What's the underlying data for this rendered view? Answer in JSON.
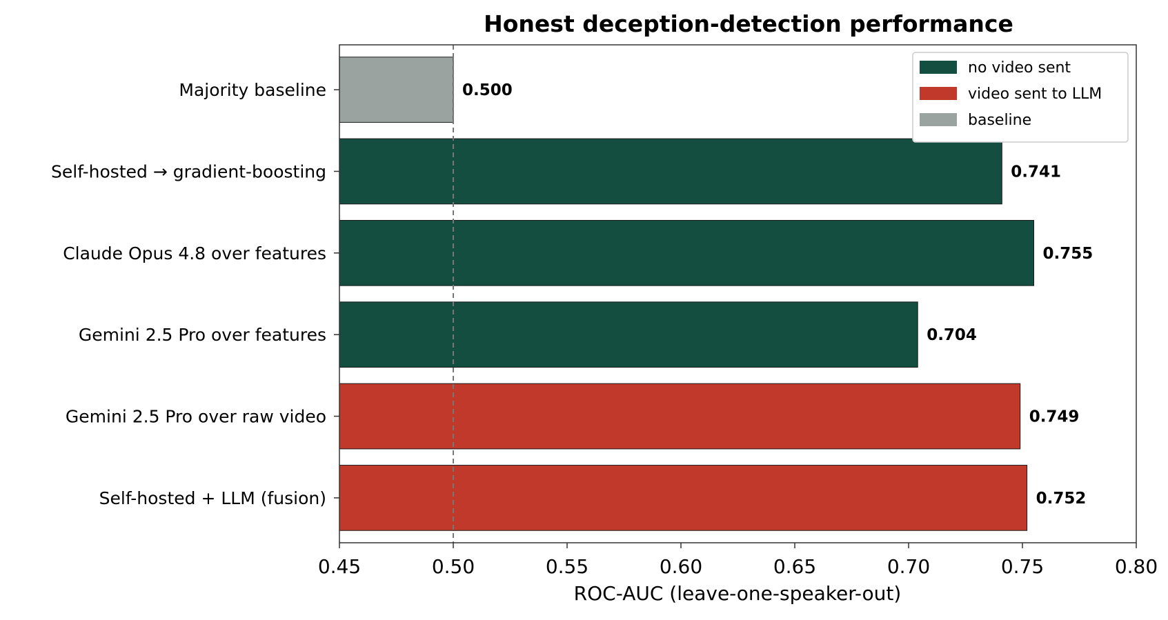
{
  "chart_data": {
    "type": "bar",
    "orientation": "horizontal",
    "title": "Honest deception-detection performance",
    "xlabel": "ROC-AUC (leave-one-speaker-out)",
    "ylabel": "",
    "xlim": [
      0.45,
      0.8
    ],
    "xticks": [
      "0.45",
      "0.50",
      "0.55",
      "0.60",
      "0.65",
      "0.70",
      "0.75",
      "0.80"
    ],
    "reference_line": 0.5,
    "grid": false,
    "legend_position": "top-right",
    "categories": [
      "Majority baseline",
      "Self-hosted → gradient-boosting",
      "Claude Opus 4.8 over features",
      "Gemini 2.5 Pro over features",
      "Gemini 2.5 Pro over raw video",
      "Self-hosted + LLM (fusion)"
    ],
    "values": [
      0.5,
      0.741,
      0.755,
      0.704,
      0.749,
      0.752
    ],
    "value_labels": [
      "0.500",
      "0.741",
      "0.755",
      "0.704",
      "0.749",
      "0.752"
    ],
    "groups": [
      "baseline",
      "no video sent",
      "no video sent",
      "no video sent",
      "video sent to LLM",
      "video sent to LLM"
    ],
    "legend": [
      {
        "label": "no video sent",
        "color": "#134e40"
      },
      {
        "label": "video sent to LLM",
        "color": "#c0392b"
      },
      {
        "label": "baseline",
        "color": "#9aa39f"
      }
    ]
  }
}
